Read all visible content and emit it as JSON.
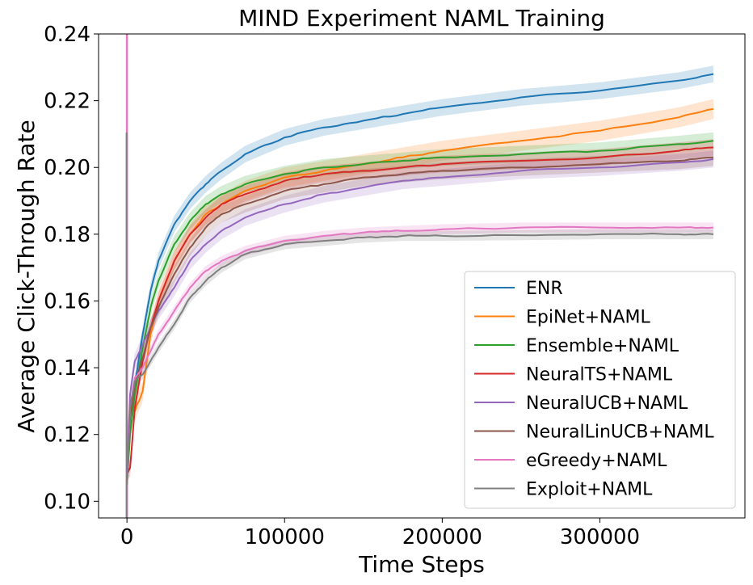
{
  "chart_data": {
    "type": "line",
    "title": "MIND Experiment NAML Training",
    "xlabel": "Time Steps",
    "ylabel": "Average Click-Through Rate",
    "xlim": [
      -18000,
      392000
    ],
    "ylim": [
      0.095,
      0.24
    ],
    "xticks": [
      0,
      100000,
      200000,
      300000
    ],
    "xtick_labels": [
      "0",
      "100000",
      "200000",
      "300000"
    ],
    "yticks": [
      0.1,
      0.12,
      0.14,
      0.16,
      0.18,
      0.2,
      0.22,
      0.24
    ],
    "ytick_labels": [
      "0.10",
      "0.12",
      "0.14",
      "0.16",
      "0.18",
      "0.20",
      "0.22",
      "0.24"
    ],
    "grid": false,
    "legend_position": "lower-right",
    "x": [
      0,
      2000,
      5000,
      10000,
      15000,
      20000,
      30000,
      40000,
      50000,
      60000,
      75000,
      100000,
      125000,
      150000,
      175000,
      200000,
      250000,
      300000,
      350000,
      372000
    ],
    "series": [
      {
        "name": "ENR",
        "color": "#1f77b4",
        "band": 0.0025,
        "values": [
          0.105,
          0.125,
          0.135,
          0.15,
          0.163,
          0.172,
          0.183,
          0.19,
          0.195,
          0.199,
          0.204,
          0.209,
          0.212,
          0.214,
          0.216,
          0.218,
          0.221,
          0.223,
          0.226,
          0.228
        ]
      },
      {
        "name": "EpiNet+NAML",
        "color": "#ff7f0e",
        "band": 0.003,
        "values": [
          0.105,
          0.128,
          0.127,
          0.133,
          0.15,
          0.16,
          0.172,
          0.18,
          0.186,
          0.189,
          0.193,
          0.197,
          0.199,
          0.201,
          0.203,
          0.205,
          0.208,
          0.211,
          0.215,
          0.2175
        ]
      },
      {
        "name": "Ensemble+NAML",
        "color": "#2ca02c",
        "band": 0.0025,
        "values": [
          0.105,
          0.12,
          0.132,
          0.146,
          0.158,
          0.166,
          0.177,
          0.184,
          0.189,
          0.192,
          0.195,
          0.198,
          0.2,
          0.201,
          0.202,
          0.203,
          0.204,
          0.205,
          0.207,
          0.208
        ]
      },
      {
        "name": "NeuralTS+NAML",
        "color": "#d62728",
        "band": 0.0025,
        "values": [
          0.108,
          0.11,
          0.128,
          0.142,
          0.152,
          0.16,
          0.172,
          0.18,
          0.185,
          0.189,
          0.192,
          0.196,
          0.198,
          0.199,
          0.2,
          0.201,
          0.202,
          0.203,
          0.205,
          0.206
        ]
      },
      {
        "name": "NeuralUCB+NAML",
        "color": "#9467bd",
        "band": 0.0025,
        "values": [
          0.108,
          0.132,
          0.142,
          0.147,
          0.152,
          0.157,
          0.164,
          0.172,
          0.177,
          0.181,
          0.185,
          0.189,
          0.192,
          0.194,
          0.196,
          0.197,
          0.199,
          0.2,
          0.2015,
          0.2025
        ]
      },
      {
        "name": "NeuralLinUCB+NAML",
        "color": "#8c564b",
        "band": 0.0025,
        "values": [
          0.106,
          0.125,
          0.135,
          0.143,
          0.152,
          0.158,
          0.168,
          0.176,
          0.182,
          0.186,
          0.189,
          0.193,
          0.195,
          0.197,
          0.198,
          0.199,
          0.2,
          0.201,
          0.202,
          0.203
        ]
      },
      {
        "name": "eGreedy+NAML",
        "color": "#e377c2",
        "band": 0.0015,
        "values": [
          0.105,
          0.128,
          0.137,
          0.14,
          0.145,
          0.15,
          0.157,
          0.164,
          0.169,
          0.172,
          0.175,
          0.178,
          0.1795,
          0.1805,
          0.181,
          0.1815,
          0.182,
          0.182,
          0.182,
          0.182
        ]
      },
      {
        "name": "Exploit+NAML",
        "color": "#7f7f7f",
        "band": 0.0015,
        "values": [
          0.105,
          0.128,
          0.136,
          0.138,
          0.142,
          0.146,
          0.153,
          0.161,
          0.166,
          0.17,
          0.174,
          0.177,
          0.178,
          0.179,
          0.1795,
          0.1795,
          0.1797,
          0.18,
          0.18,
          0.18
        ]
      }
    ],
    "initial_spike": {
      "x": 0,
      "pink_top": 0.24,
      "gray_top": 0.2105,
      "bottom": 0.095
    }
  }
}
